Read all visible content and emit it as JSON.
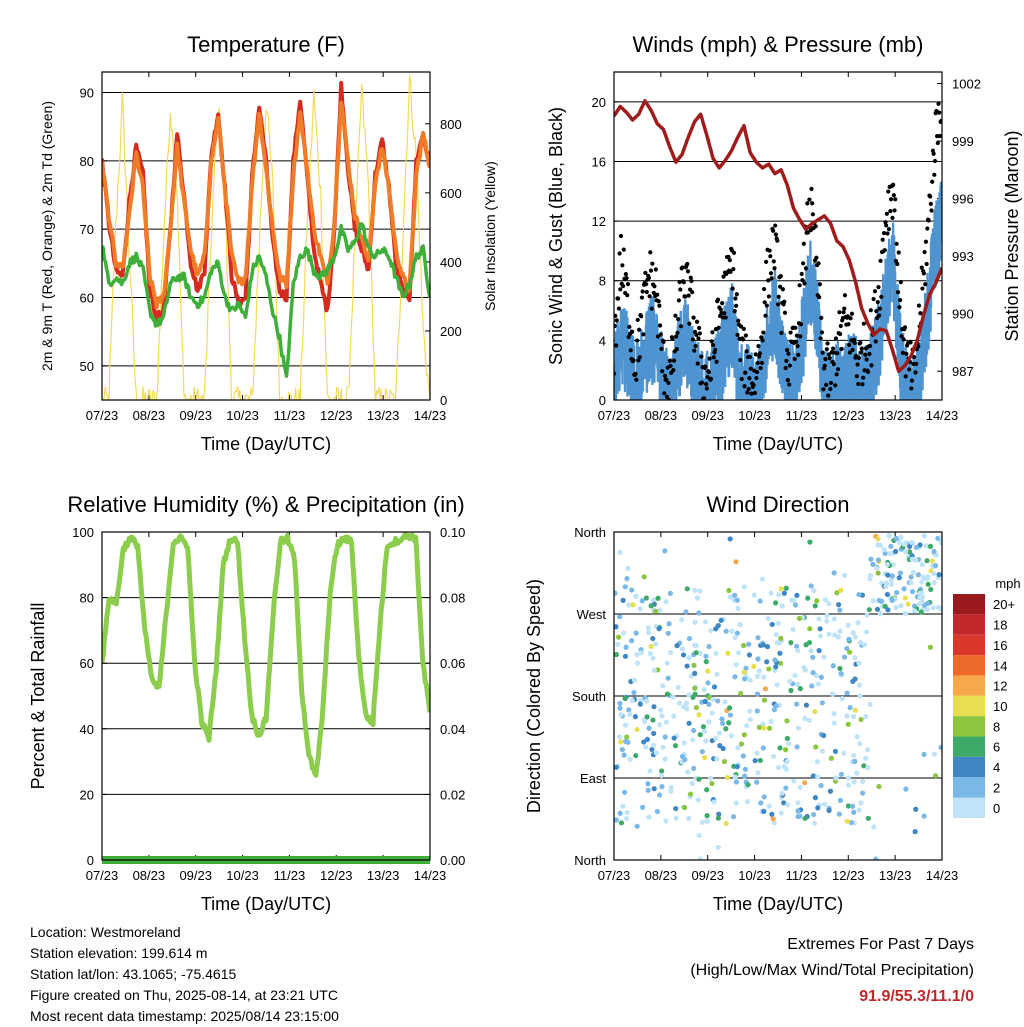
{
  "chart_data": [
    {
      "id": "temp",
      "type": "line",
      "title": "Temperature (F)",
      "xlabel": "Time (Day/UTC)",
      "ylabel": "2m & 9m T (Red, Orange) & 2m Td (Green)",
      "y2label": "Solar Insolation (Yellow)",
      "x_ticks": [
        "07/23",
        "08/23",
        "09/23",
        "10/23",
        "11/23",
        "12/23",
        "13/23",
        "14/23"
      ],
      "ylim": [
        45,
        93
      ],
      "y_ticks": [
        50,
        60,
        70,
        80,
        90
      ],
      "y2lim": [
        0,
        950
      ],
      "y2_ticks": [
        0,
        200,
        400,
        600,
        800
      ],
      "grid": true,
      "series": [
        {
          "name": "2m T",
          "color": "#d42a20",
          "axis": "left",
          "values": [
            80,
            71,
            64,
            63,
            74,
            82,
            78,
            61,
            57,
            58,
            70,
            84,
            75,
            65,
            61,
            64,
            81,
            87,
            76,
            63,
            59,
            60,
            78,
            88,
            80,
            68,
            61,
            60,
            80,
            89,
            78,
            67,
            62,
            58,
            70,
            91,
            79,
            70,
            67,
            64,
            78,
            83,
            76,
            65,
            61,
            60,
            80,
            84,
            79
          ]
        },
        {
          "name": "9m T",
          "color": "#f07c28",
          "axis": "left",
          "values": [
            80,
            72,
            65,
            64,
            72,
            81,
            76,
            63,
            59,
            60,
            70,
            82,
            74,
            67,
            63,
            66,
            80,
            86,
            76,
            66,
            62,
            63,
            77,
            87,
            79,
            70,
            63,
            62,
            78,
            87,
            79,
            70,
            66,
            62,
            71,
            89,
            80,
            72,
            69,
            65,
            77,
            82,
            76,
            67,
            63,
            61,
            78,
            84,
            79
          ]
        },
        {
          "name": "2m Td",
          "color": "#3fae3a",
          "axis": "left",
          "values": [
            68,
            62,
            63,
            62,
            65,
            66,
            64,
            58,
            56,
            57,
            62,
            63,
            63,
            60,
            59,
            60,
            64,
            65,
            60,
            58,
            59,
            57,
            64,
            66,
            63,
            58,
            54,
            48,
            62,
            66,
            67,
            64,
            63,
            64,
            66,
            70,
            67,
            68,
            71,
            67,
            66,
            67,
            66,
            63,
            60,
            62,
            66,
            67,
            60
          ]
        },
        {
          "name": "Solar Insolation",
          "color": "#f3da5a",
          "axis": "right",
          "values": [
            0,
            0,
            500,
            860,
            420,
            0,
            0,
            0,
            0,
            460,
            850,
            600,
            0,
            0,
            0,
            0,
            480,
            860,
            560,
            0,
            0,
            0,
            0,
            440,
            870,
            620,
            0,
            0,
            0,
            0,
            500,
            880,
            600,
            0,
            0,
            0,
            0,
            450,
            900,
            620,
            0,
            0,
            0,
            0,
            460,
            930,
            700,
            200,
            0
          ]
        }
      ]
    },
    {
      "id": "wind",
      "type": "scatter",
      "title": "Winds (mph) & Pressure (mb)",
      "xlabel": "Time (Day/UTC)",
      "ylabel": "Sonic Wind & Gust (Blue, Black)",
      "y2label": "Station Pressure (Maroon)",
      "x_ticks": [
        "07/23",
        "08/23",
        "09/23",
        "10/23",
        "11/23",
        "12/23",
        "13/23",
        "14/23"
      ],
      "ylim": [
        0,
        22
      ],
      "y_ticks": [
        0,
        4,
        8,
        12,
        16,
        20
      ],
      "y2lim": [
        985.5,
        1002.6
      ],
      "y2_ticks": [
        987,
        990,
        993,
        996,
        999,
        1002
      ],
      "grid": true,
      "series": [
        {
          "name": "Gust",
          "color": "#000000",
          "values": [
            3,
            9,
            6,
            2,
            5,
            8,
            7,
            2,
            1,
            4,
            8,
            6,
            3,
            1,
            2,
            5,
            7,
            9,
            3,
            2,
            1,
            3,
            8,
            10,
            6,
            2,
            3,
            7,
            13,
            9,
            2,
            1,
            3,
            5,
            4,
            2,
            3,
            4,
            7,
            12,
            14,
            6,
            2,
            1,
            6,
            11,
            17,
            20
          ]
        },
        {
          "name": "Sonic Wind",
          "color": "#4f94d0",
          "values": [
            1,
            4,
            3,
            1,
            2,
            4,
            4,
            1,
            0,
            2,
            4,
            3,
            1,
            0,
            1,
            2,
            4,
            5,
            1,
            1,
            0,
            1,
            4,
            6,
            3,
            1,
            1,
            4,
            8,
            6,
            1,
            0,
            1,
            2,
            2,
            1,
            1,
            2,
            4,
            7,
            9,
            3,
            0,
            0,
            3,
            6,
            10,
            12
          ]
        },
        {
          "name": "Station Pressure",
          "color": "#a01c1c",
          "values": [
            1000.3,
            1000.8,
            1000.5,
            1000.1,
            1000.4,
            1001.1,
            1000.6,
            999.9,
            999.6,
            998.7,
            997.9,
            998.3,
            999.2,
            1000.0,
            1000.4,
            999.3,
            998.1,
            997.6,
            998.0,
            998.5,
            999.2,
            999.8,
            998.4,
            997.9,
            997.6,
            997.8,
            997.3,
            997.5,
            996.7,
            995.5,
            994.9,
            994.4,
            994.7,
            994.9,
            995.1,
            994.7,
            993.8,
            993.5,
            992.8,
            991.7,
            990.3,
            989.5,
            988.9,
            989.2,
            989.1,
            988.1,
            987.0,
            987.3,
            987.8,
            988.6,
            989.9,
            991.0,
            991.6,
            992.4
          ]
        }
      ]
    },
    {
      "id": "rh",
      "type": "line",
      "title": "Relative Humidity (%) & Precipitation (in)",
      "xlabel": "Time (Day/UTC)",
      "ylabel": "Percent & Total Rainfall",
      "x_ticks": [
        "07/23",
        "08/23",
        "09/23",
        "10/23",
        "11/23",
        "12/23",
        "13/23",
        "14/23"
      ],
      "ylim": [
        0,
        100
      ],
      "y_ticks": [
        0,
        20,
        40,
        60,
        80,
        100
      ],
      "y2lim": [
        0,
        0.1
      ],
      "y2_ticks": [
        "0.00",
        "0.02",
        "0.04",
        "0.06",
        "0.08",
        "0.10"
      ],
      "grid": true,
      "series": [
        {
          "name": "Relative Humidity",
          "color": "#8ccd4e",
          "values": [
            60,
            80,
            78,
            95,
            98,
            96,
            70,
            55,
            52,
            75,
            97,
            98,
            96,
            60,
            42,
            37,
            58,
            90,
            98,
            97,
            68,
            44,
            38,
            43,
            75,
            97,
            98,
            92,
            52,
            32,
            25,
            46,
            82,
            96,
            98,
            97,
            62,
            44,
            42,
            72,
            96,
            97,
            98,
            99,
            98,
            60,
            45
          ]
        },
        {
          "name": "Total Precipitation",
          "color": "#3fae3a",
          "values": [
            0,
            0
          ]
        }
      ]
    },
    {
      "id": "dir",
      "type": "scatter",
      "title": "Wind Direction",
      "xlabel": "Time (Day/UTC)",
      "ylabel": "Direction (Colored By Speed)",
      "x_ticks": [
        "07/23",
        "08/23",
        "09/23",
        "10/23",
        "11/23",
        "12/23",
        "13/23",
        "14/23"
      ],
      "y_ticks": [
        "North",
        "East",
        "South",
        "West",
        "North"
      ],
      "ylim": [
        0,
        360
      ],
      "grid": true,
      "colorbar": {
        "title": "mph",
        "labels": [
          "20+",
          "18",
          "16",
          "14",
          "12",
          "10",
          "8",
          "6",
          "4",
          "2",
          "0"
        ],
        "colors": [
          "#9a1b1e",
          "#c0282a",
          "#d9382b",
          "#ee6a2c",
          "#f7a84a",
          "#e8df50",
          "#8cc63f",
          "#3daa6a",
          "#3f86c4",
          "#7ab8e8",
          "#bfe3f7"
        ]
      }
    }
  ],
  "info": {
    "location": "Location: Westmoreland",
    "elevation": "Station elevation: 199.614 m",
    "latlon": "Station lat/lon: 43.1065; -75.4615",
    "created": "Figure created on Thu, 2025-08-14, at 23:21 UTC",
    "timestamp": "Most recent data timestamp: 2025/08/14 23:15:00"
  },
  "extremes": {
    "title": "Extremes For Past 7 Days",
    "subtitle": "(High/Low/Max Wind/Total Precipitation)",
    "values": "91.9/55.3/11.1/0"
  }
}
